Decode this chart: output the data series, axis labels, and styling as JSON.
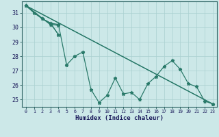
{
  "xlabel": "Humidex (Indice chaleur)",
  "background_color": "#cce8e8",
  "plot_bg_color": "#cce8e8",
  "grid_color": "#aad0d0",
  "line_color": "#2a7a6a",
  "axis_color": "#2a6060",
  "xlim": [
    -0.5,
    23.5
  ],
  "ylim": [
    24.5,
    31.8
  ],
  "yticks": [
    25,
    26,
    27,
    28,
    29,
    30,
    31
  ],
  "xticks": [
    0,
    1,
    2,
    3,
    4,
    5,
    6,
    7,
    8,
    9,
    10,
    11,
    12,
    13,
    14,
    15,
    16,
    17,
    18,
    19,
    20,
    21,
    22,
    23
  ],
  "main_x": [
    0,
    1,
    2,
    3,
    4,
    5,
    6,
    7,
    8,
    9,
    10,
    11,
    12,
    13,
    14,
    15,
    16,
    17,
    18,
    19,
    20,
    21,
    22,
    23
  ],
  "main_y": [
    31.5,
    31.0,
    30.6,
    30.3,
    30.2,
    27.4,
    28.0,
    28.3,
    25.7,
    24.8,
    25.3,
    26.5,
    25.4,
    25.5,
    25.0,
    26.1,
    26.6,
    27.3,
    27.7,
    27.1,
    26.1,
    25.9,
    24.9,
    24.7
  ],
  "line1_x": [
    0,
    2,
    3,
    4
  ],
  "line1_y": [
    31.5,
    30.6,
    30.3,
    29.5
  ],
  "line2_x": [
    0,
    3,
    4
  ],
  "line2_y": [
    31.5,
    30.2,
    30.15
  ],
  "line3_x": [
    0,
    23
  ],
  "line3_y": [
    31.5,
    24.7
  ]
}
